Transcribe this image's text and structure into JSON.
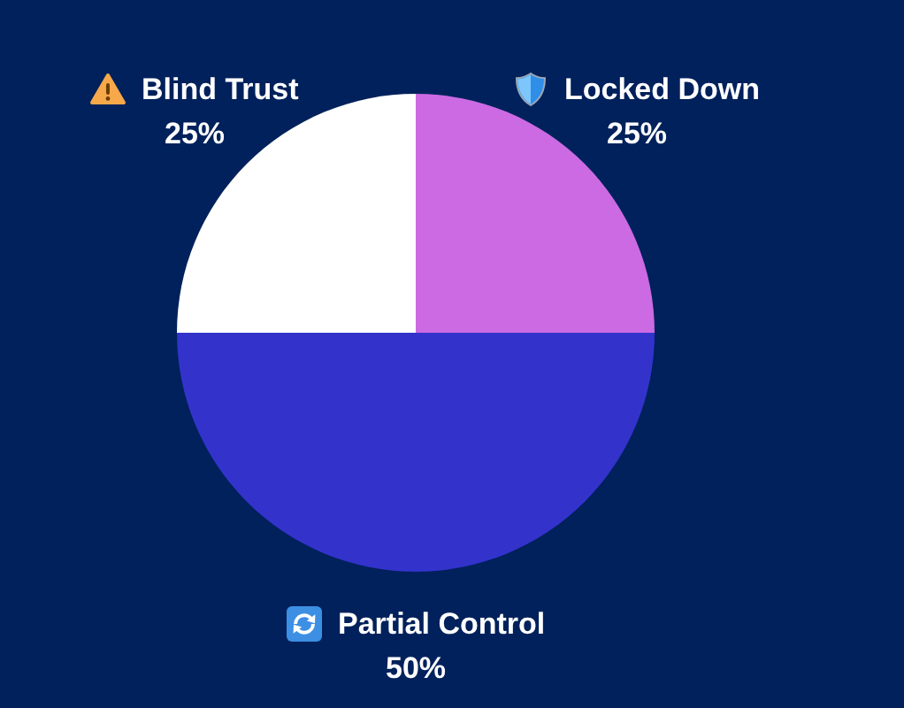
{
  "chart_data": {
    "type": "pie",
    "categories": [
      "Locked Down",
      "Partial Control",
      "Blind Trust"
    ],
    "values": [
      25,
      50,
      25
    ],
    "colors": [
      "#cc6ae3",
      "#3333cc",
      "#ffffff"
    ],
    "value_labels": [
      "25%",
      "50%",
      "25%"
    ]
  }
}
